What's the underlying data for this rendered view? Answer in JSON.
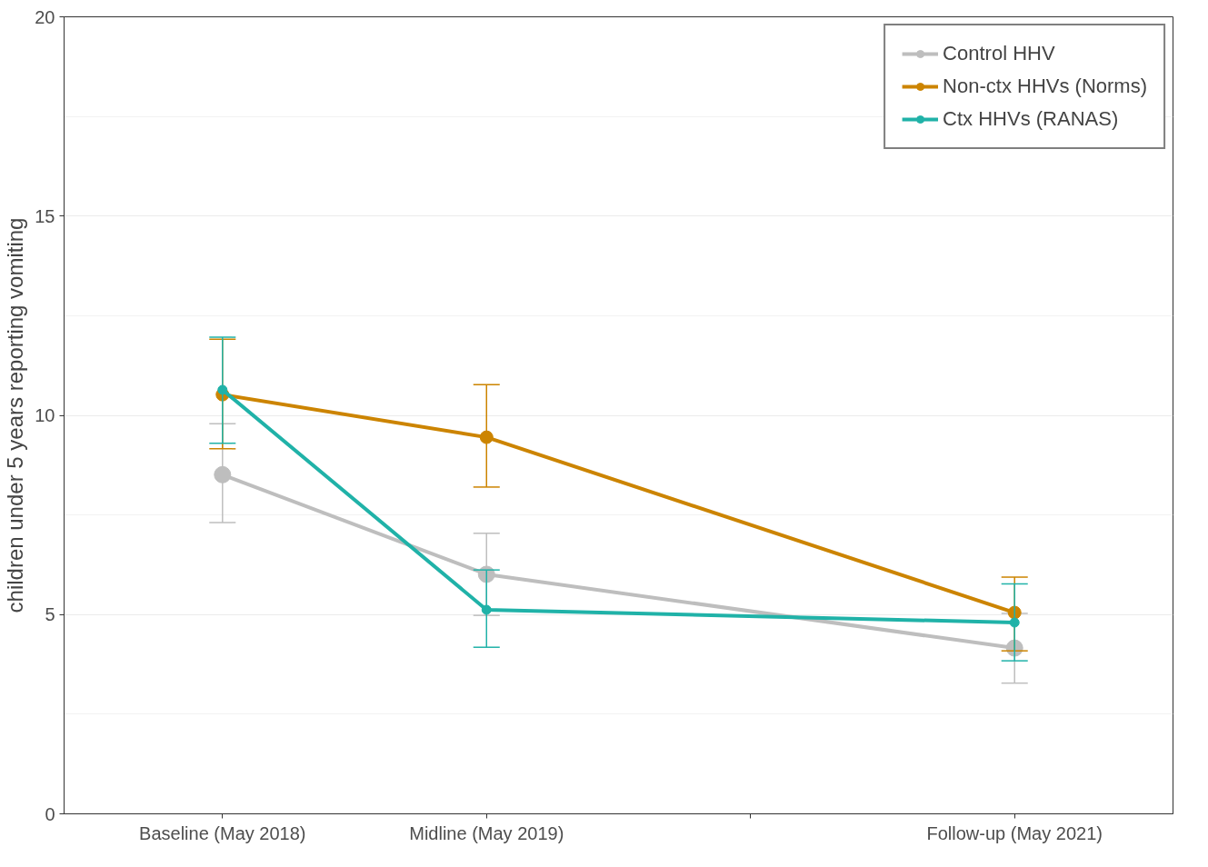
{
  "chart_data": {
    "type": "line",
    "ylabel": "children under 5 years reporting vomiting",
    "categories": [
      "Baseline (May 2018)",
      "Midline (May 2019)",
      null,
      "Follow-up (May 2021)"
    ],
    "series": [
      {
        "name": "Control HHV",
        "color": "#bebebe",
        "values": [
          8.51,
          6.01,
          null,
          4.16
        ],
        "errors": [
          [
            7.31,
            9.79
          ],
          [
            4.98,
            7.04
          ],
          null,
          [
            3.28,
            5.03
          ]
        ]
      },
      {
        "name": "Non-ctx HHVs (Norms)",
        "color": "#cc8400",
        "values": [
          10.52,
          9.45,
          null,
          5.05
        ],
        "errors": [
          [
            9.16,
            11.91
          ],
          [
            8.2,
            10.77
          ],
          null,
          [
            4.09,
            5.94
          ]
        ]
      },
      {
        "name": "Ctx HHVs (RANAS)",
        "color": "#20b2a8",
        "values": [
          10.64,
          5.12,
          null,
          4.8
        ],
        "errors": [
          [
            9.3,
            11.96
          ],
          [
            4.18,
            6.12
          ],
          null,
          [
            3.84,
            5.77
          ]
        ]
      }
    ],
    "ylim": [
      0,
      20
    ],
    "yticks": [
      0,
      5,
      10,
      15,
      20
    ],
    "grid": "y",
    "legend": "top right",
    "marker": "circle",
    "line_style": "solid"
  }
}
